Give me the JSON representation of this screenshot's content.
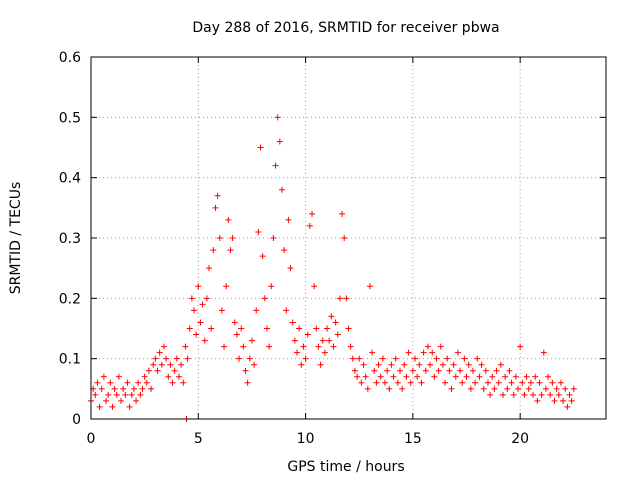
{
  "chart_data": {
    "type": "scatter",
    "title": "Day 288 of 2016, SRMTID for receiver pbwa",
    "xlabel": "GPS time / hours",
    "ylabel": "SRMTID / TECUs",
    "xlim": [
      0,
      24
    ],
    "ylim": [
      0,
      0.6
    ],
    "xticks": [
      0,
      5,
      10,
      15,
      20
    ],
    "xtick_labels": [
      "0",
      "5",
      "10",
      "15",
      "20"
    ],
    "yticks": [
      0,
      0.1,
      0.2,
      0.3,
      0.4,
      0.5,
      0.6
    ],
    "ytick_labels": [
      "0",
      "0.1",
      "0.2",
      "0.3",
      "0.4",
      "0.5",
      "0.6"
    ],
    "grid": true,
    "marker": "+",
    "color": "#ff0000",
    "series": [
      {
        "name": "SRMTID",
        "points": [
          [
            0.0,
            0.03
          ],
          [
            0.1,
            0.05
          ],
          [
            0.2,
            0.04
          ],
          [
            0.3,
            0.06
          ],
          [
            0.4,
            0.02
          ],
          [
            0.5,
            0.05
          ],
          [
            0.6,
            0.07
          ],
          [
            0.7,
            0.03
          ],
          [
            0.8,
            0.04
          ],
          [
            0.9,
            0.06
          ],
          [
            1.0,
            0.02
          ],
          [
            1.1,
            0.05
          ],
          [
            1.2,
            0.04
          ],
          [
            1.3,
            0.07
          ],
          [
            1.4,
            0.03
          ],
          [
            1.5,
            0.05
          ],
          [
            1.6,
            0.04
          ],
          [
            1.7,
            0.06
          ],
          [
            1.8,
            0.02
          ],
          [
            1.9,
            0.04
          ],
          [
            2.0,
            0.05
          ],
          [
            2.1,
            0.03
          ],
          [
            2.2,
            0.06
          ],
          [
            2.3,
            0.04
          ],
          [
            2.4,
            0.05
          ],
          [
            2.5,
            0.07
          ],
          [
            2.6,
            0.06
          ],
          [
            2.7,
            0.08
          ],
          [
            2.8,
            0.05
          ],
          [
            2.9,
            0.09
          ],
          [
            3.0,
            0.1
          ],
          [
            3.1,
            0.08
          ],
          [
            3.2,
            0.11
          ],
          [
            3.3,
            0.09
          ],
          [
            3.4,
            0.12
          ],
          [
            3.5,
            0.1
          ],
          [
            3.6,
            0.07
          ],
          [
            3.7,
            0.09
          ],
          [
            3.8,
            0.06
          ],
          [
            3.9,
            0.08
          ],
          [
            4.0,
            0.1
          ],
          [
            4.1,
            0.07
          ],
          [
            4.2,
            0.09
          ],
          [
            4.3,
            0.06
          ],
          [
            4.4,
            0.12
          ],
          [
            4.45,
            0.0
          ],
          [
            4.5,
            0.1
          ],
          [
            4.6,
            0.15
          ],
          [
            4.7,
            0.2
          ],
          [
            4.8,
            0.18
          ],
          [
            4.9,
            0.14
          ],
          [
            5.0,
            0.22
          ],
          [
            5.1,
            0.16
          ],
          [
            5.2,
            0.19
          ],
          [
            5.3,
            0.13
          ],
          [
            5.4,
            0.2
          ],
          [
            5.5,
            0.25
          ],
          [
            5.6,
            0.15
          ],
          [
            5.7,
            0.28
          ],
          [
            5.8,
            0.35
          ],
          [
            5.9,
            0.37
          ],
          [
            6.0,
            0.3
          ],
          [
            6.1,
            0.18
          ],
          [
            6.2,
            0.12
          ],
          [
            6.3,
            0.22
          ],
          [
            6.4,
            0.33
          ],
          [
            6.5,
            0.28
          ],
          [
            6.6,
            0.3
          ],
          [
            6.7,
            0.16
          ],
          [
            6.8,
            0.14
          ],
          [
            6.9,
            0.1
          ],
          [
            7.0,
            0.15
          ],
          [
            7.1,
            0.12
          ],
          [
            7.2,
            0.08
          ],
          [
            7.3,
            0.06
          ],
          [
            7.4,
            0.1
          ],
          [
            7.5,
            0.13
          ],
          [
            7.6,
            0.09
          ],
          [
            7.7,
            0.18
          ],
          [
            7.8,
            0.31
          ],
          [
            7.9,
            0.45
          ],
          [
            8.0,
            0.27
          ],
          [
            8.1,
            0.2
          ],
          [
            8.2,
            0.15
          ],
          [
            8.3,
            0.12
          ],
          [
            8.4,
            0.22
          ],
          [
            8.5,
            0.3
          ],
          [
            8.6,
            0.42
          ],
          [
            8.7,
            0.5
          ],
          [
            8.8,
            0.46
          ],
          [
            8.9,
            0.38
          ],
          [
            9.0,
            0.28
          ],
          [
            9.1,
            0.18
          ],
          [
            9.2,
            0.33
          ],
          [
            9.3,
            0.25
          ],
          [
            9.4,
            0.16
          ],
          [
            9.5,
            0.13
          ],
          [
            9.6,
            0.11
          ],
          [
            9.7,
            0.15
          ],
          [
            9.8,
            0.09
          ],
          [
            9.9,
            0.12
          ],
          [
            10.0,
            0.1
          ],
          [
            10.1,
            0.14
          ],
          [
            10.2,
            0.32
          ],
          [
            10.3,
            0.34
          ],
          [
            10.4,
            0.22
          ],
          [
            10.5,
            0.15
          ],
          [
            10.6,
            0.12
          ],
          [
            10.7,
            0.09
          ],
          [
            10.8,
            0.13
          ],
          [
            10.9,
            0.11
          ],
          [
            11.0,
            0.15
          ],
          [
            11.1,
            0.13
          ],
          [
            11.2,
            0.17
          ],
          [
            11.3,
            0.12
          ],
          [
            11.4,
            0.16
          ],
          [
            11.5,
            0.14
          ],
          [
            11.6,
            0.2
          ],
          [
            11.7,
            0.34
          ],
          [
            11.8,
            0.3
          ],
          [
            11.9,
            0.2
          ],
          [
            12.0,
            0.15
          ],
          [
            12.1,
            0.12
          ],
          [
            12.2,
            0.1
          ],
          [
            12.3,
            0.08
          ],
          [
            12.4,
            0.07
          ],
          [
            12.5,
            0.1
          ],
          [
            12.6,
            0.06
          ],
          [
            12.7,
            0.09
          ],
          [
            12.8,
            0.07
          ],
          [
            12.9,
            0.05
          ],
          [
            13.0,
            0.22
          ],
          [
            13.1,
            0.11
          ],
          [
            13.2,
            0.08
          ],
          [
            13.3,
            0.06
          ],
          [
            13.4,
            0.09
          ],
          [
            13.5,
            0.07
          ],
          [
            13.6,
            0.1
          ],
          [
            13.7,
            0.06
          ],
          [
            13.8,
            0.08
          ],
          [
            13.9,
            0.05
          ],
          [
            14.0,
            0.09
          ],
          [
            14.1,
            0.07
          ],
          [
            14.2,
            0.1
          ],
          [
            14.3,
            0.06
          ],
          [
            14.4,
            0.08
          ],
          [
            14.5,
            0.05
          ],
          [
            14.6,
            0.09
          ],
          [
            14.7,
            0.07
          ],
          [
            14.8,
            0.11
          ],
          [
            14.9,
            0.06
          ],
          [
            15.0,
            0.08
          ],
          [
            15.1,
            0.1
          ],
          [
            15.2,
            0.07
          ],
          [
            15.3,
            0.09
          ],
          [
            15.4,
            0.06
          ],
          [
            15.5,
            0.11
          ],
          [
            15.6,
            0.08
          ],
          [
            15.7,
            0.12
          ],
          [
            15.8,
            0.09
          ],
          [
            15.9,
            0.11
          ],
          [
            16.0,
            0.07
          ],
          [
            16.1,
            0.1
          ],
          [
            16.2,
            0.08
          ],
          [
            16.3,
            0.12
          ],
          [
            16.4,
            0.09
          ],
          [
            16.5,
            0.06
          ],
          [
            16.6,
            0.1
          ],
          [
            16.7,
            0.08
          ],
          [
            16.8,
            0.05
          ],
          [
            16.9,
            0.09
          ],
          [
            17.0,
            0.07
          ],
          [
            17.1,
            0.11
          ],
          [
            17.2,
            0.08
          ],
          [
            17.3,
            0.06
          ],
          [
            17.4,
            0.1
          ],
          [
            17.5,
            0.07
          ],
          [
            17.6,
            0.09
          ],
          [
            17.7,
            0.05
          ],
          [
            17.8,
            0.08
          ],
          [
            17.9,
            0.06
          ],
          [
            18.0,
            0.1
          ],
          [
            18.1,
            0.07
          ],
          [
            18.2,
            0.09
          ],
          [
            18.3,
            0.05
          ],
          [
            18.4,
            0.08
          ],
          [
            18.5,
            0.06
          ],
          [
            18.6,
            0.04
          ],
          [
            18.7,
            0.07
          ],
          [
            18.8,
            0.05
          ],
          [
            18.9,
            0.08
          ],
          [
            19.0,
            0.06
          ],
          [
            19.1,
            0.09
          ],
          [
            19.2,
            0.04
          ],
          [
            19.3,
            0.07
          ],
          [
            19.4,
            0.05
          ],
          [
            19.5,
            0.08
          ],
          [
            19.6,
            0.06
          ],
          [
            19.7,
            0.04
          ],
          [
            19.8,
            0.07
          ],
          [
            19.9,
            0.05
          ],
          [
            20.0,
            0.12
          ],
          [
            20.1,
            0.06
          ],
          [
            20.2,
            0.04
          ],
          [
            20.3,
            0.07
          ],
          [
            20.4,
            0.05
          ],
          [
            20.5,
            0.06
          ],
          [
            20.6,
            0.04
          ],
          [
            20.7,
            0.07
          ],
          [
            20.8,
            0.03
          ],
          [
            20.9,
            0.06
          ],
          [
            21.0,
            0.04
          ],
          [
            21.1,
            0.11
          ],
          [
            21.2,
            0.05
          ],
          [
            21.3,
            0.07
          ],
          [
            21.4,
            0.04
          ],
          [
            21.5,
            0.06
          ],
          [
            21.6,
            0.03
          ],
          [
            21.7,
            0.05
          ],
          [
            21.8,
            0.04
          ],
          [
            21.9,
            0.06
          ],
          [
            22.0,
            0.03
          ],
          [
            22.1,
            0.05
          ],
          [
            22.2,
            0.02
          ],
          [
            22.3,
            0.04
          ],
          [
            22.4,
            0.03
          ],
          [
            22.5,
            0.05
          ]
        ]
      }
    ]
  }
}
